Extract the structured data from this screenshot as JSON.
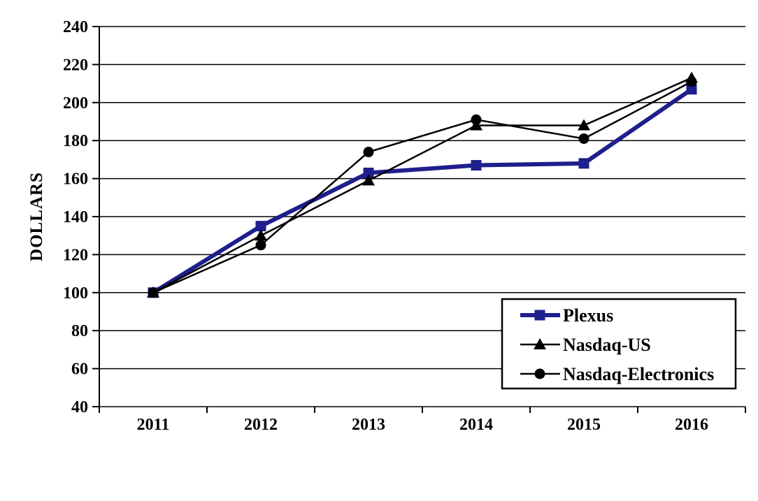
{
  "figure": {
    "background": "#FFFFFF"
  },
  "chart_data": {
    "type": "line",
    "title": "",
    "ylabel": "DOLLARS",
    "xlabel": "",
    "categories": [
      "2011",
      "2012",
      "2013",
      "2014",
      "2015",
      "2016"
    ],
    "ylim": [
      40,
      240
    ],
    "yticks": [
      40,
      60,
      80,
      100,
      120,
      140,
      160,
      180,
      200,
      220,
      240
    ],
    "grid": "horizontal-gridlines",
    "legend_position": "inside-lower-right",
    "axis_color": "#000000",
    "series": [
      {
        "name": "Plexus",
        "marker": "square",
        "color": "#1E1E8C",
        "line_width": 6,
        "values": [
          100,
          135,
          163,
          167,
          168,
          207
        ]
      },
      {
        "name": "Nasdaq-US",
        "marker": "triangle",
        "color": "#000000",
        "line_width": 2.5,
        "values": [
          100,
          130,
          159,
          188,
          188,
          213
        ]
      },
      {
        "name": "Nasdaq-Electronics",
        "marker": "circle",
        "color": "#000000",
        "line_width": 2.5,
        "values": [
          100,
          125,
          174,
          191,
          181,
          211
        ]
      }
    ]
  }
}
